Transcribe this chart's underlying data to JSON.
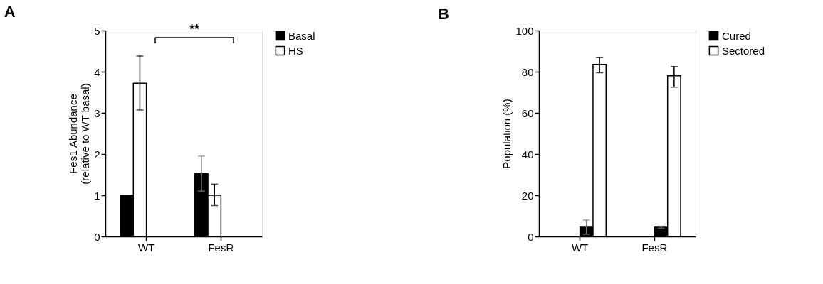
{
  "chart_data": [
    {
      "type": "bar",
      "title": "A",
      "ylabel": "Fes1 Abundance\n(relative to WT basal)",
      "categories": [
        "WT",
        "FesR"
      ],
      "ylim": [
        0,
        5
      ],
      "yticks": [
        0,
        1,
        2,
        3,
        4,
        5
      ],
      "grid": false,
      "legend": "top right",
      "annotations": [
        "**"
      ],
      "series": [
        {
          "name": "Basal",
          "color": "#000000",
          "values": [
            1.0,
            1.52
          ],
          "errors": [
            null,
            [
              1.1,
              1.95
            ]
          ]
        },
        {
          "name": "HS",
          "color": "#ffffff",
          "values": [
            3.72,
            1.0
          ],
          "errors": [
            [
              3.07,
              4.38
            ],
            [
              0.75,
              1.27
            ]
          ]
        }
      ]
    },
    {
      "type": "bar",
      "title": "B",
      "ylabel": "Population (%)",
      "categories": [
        "WT",
        "FesR"
      ],
      "ylim": [
        0,
        100
      ],
      "yticks": [
        0,
        20,
        40,
        60,
        80,
        100
      ],
      "grid": false,
      "legend": "top right",
      "series": [
        {
          "name": "Cured",
          "color": "#000000",
          "values": [
            4.5,
            4.5
          ],
          "errors": [
            [
              1,
              8
            ],
            [
              4,
              5
            ]
          ]
        },
        {
          "name": "Sectored",
          "color": "#ffffff",
          "values": [
            83.5,
            78
          ],
          "errors": [
            [
              79.5,
              87
            ],
            [
              72.5,
              82.5
            ]
          ]
        }
      ]
    }
  ]
}
